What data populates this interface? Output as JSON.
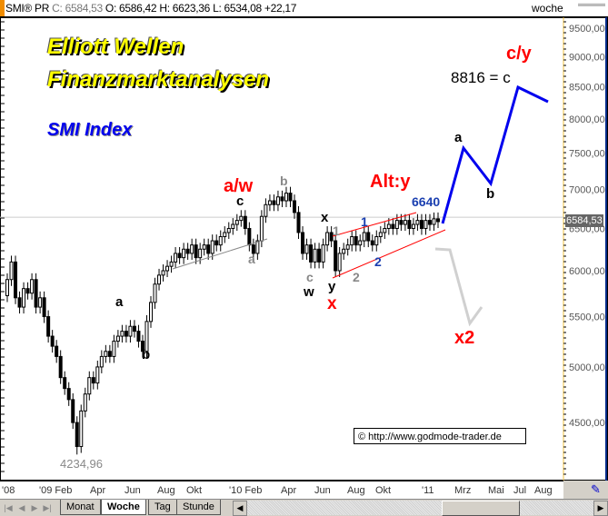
{
  "header": {
    "symbol": "SMI® PR",
    "close_label": "C: 6584,53",
    "open_label": "O: 6586,42",
    "high_label": "H: 6623,36",
    "low_label": "L: 6534,08",
    "change": "+22,17",
    "period": "woche"
  },
  "annotations": {
    "title1": "Elliott Wellen",
    "title2": "Finanzmarktanalysen",
    "index": "SMI Index",
    "aw": "a/w",
    "c1": "c",
    "a_gray1": "a",
    "b_gray1": "b",
    "a1": "a",
    "b1": "b",
    "low_value": "4234,96",
    "c_gray": "c",
    "w": "w",
    "x_black": "x",
    "one_gray": "1",
    "y": "y",
    "x_red": "x",
    "two_gray": "2",
    "one_blue": "1",
    "two_blue": "2",
    "alty": "Alt:y",
    "v6640": "6640",
    "a2": "a",
    "b2": "b",
    "target": "8816 = c",
    "cy": "c/y",
    "x2": "x2",
    "copyright": "© http://www.godmode-trader.de"
  },
  "tabs": [
    {
      "label": "Monat"
    },
    {
      "label": "Woche",
      "active": true
    },
    {
      "label": "Tag"
    },
    {
      "label": "Stunde"
    }
  ],
  "colors": {
    "up": "#ffffff",
    "down": "#000000",
    "projection": "#0000ee",
    "alt_projection": "#d0d0d0",
    "channel": "#ff0000",
    "label_red": "#ff0000",
    "label_blue": "#1a3fb0",
    "gold_axis": "#f0c040"
  },
  "chart_data": {
    "type": "candlestick",
    "scale": "log",
    "ylim": [
      4200,
      9700
    ],
    "y_ticks": [
      "9500,00",
      "9000,00",
      "8500,00",
      "8000,00",
      "7500,00",
      "7000,00",
      "6500,00",
      "6000,00",
      "5500,00",
      "5000,00",
      "4500,00"
    ],
    "y_tick_values": [
      9500,
      9000,
      8500,
      8000,
      7500,
      7000,
      6500,
      6000,
      5500,
      5000,
      4500
    ],
    "x_ticks": [
      "'08",
      "'09 Feb",
      "Apr",
      "Jun",
      "Aug",
      "Okt",
      "'10 Feb",
      "Apr",
      "Jun",
      "Aug",
      "Okt",
      "'11",
      "Mrz",
      "Mai",
      "Jul",
      "Aug"
    ],
    "last_price": "6584,53",
    "low": 4234.96,
    "weekly_close": [
      5900,
      6100,
      5700,
      5600,
      5800,
      5750,
      5900,
      5600,
      5700,
      5500,
      5300,
      5200,
      5100,
      4900,
      4800,
      4700,
      4500,
      4300,
      4600,
      4750,
      4900,
      4850,
      5000,
      5100,
      5150,
      5100,
      5250,
      5300,
      5350,
      5300,
      5400,
      5350,
      5250,
      5150,
      5450,
      5650,
      5850,
      5950,
      6000,
      6050,
      6100,
      6200,
      6150,
      6250,
      6200,
      6300,
      6150,
      6250,
      6300,
      6200,
      6350,
      6300,
      6400,
      6450,
      6500,
      6550,
      6600,
      6650,
      6500,
      6300,
      6200,
      6350,
      6650,
      6800,
      6850,
      6800,
      6900,
      6850,
      6950,
      6850,
      6700,
      6450,
      6200,
      6300,
      6100,
      6250,
      6100,
      6300,
      6450,
      6350,
      6000,
      6200,
      6250,
      6300,
      6400,
      6300,
      6350,
      6450,
      6350,
      6300,
      6400,
      6450,
      6500,
      6550,
      6500,
      6600,
      6550,
      6600,
      6500,
      6550,
      6600,
      6500,
      6600,
      6550,
      6620,
      6584.53
    ],
    "resistance_level": 6640,
    "projection_main": [
      6584,
      7600,
      7100,
      8816,
      8300
    ],
    "projection_alt": [
      6300,
      6280,
      5500,
      5650
    ]
  }
}
